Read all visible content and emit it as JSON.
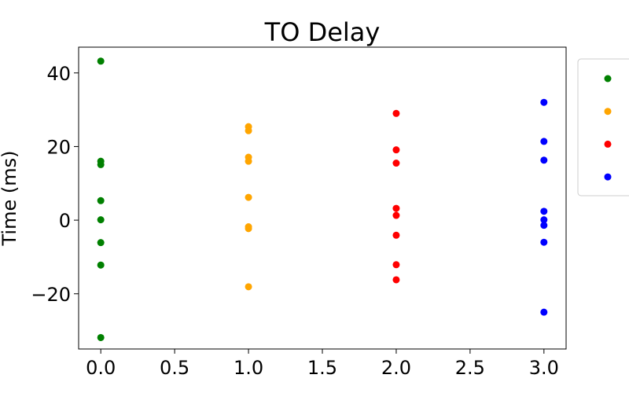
{
  "chart_data": {
    "type": "scatter",
    "title": "TO Delay",
    "xlabel": "",
    "ylabel": "Time (ms)",
    "xlim": [
      -0.15,
      3.15
    ],
    "ylim": [
      -35,
      47
    ],
    "xticks": [
      0.0,
      0.5,
      1.0,
      1.5,
      2.0,
      2.5,
      3.0
    ],
    "xtick_labels": [
      "0.0",
      "0.5",
      "1.0",
      "1.5",
      "2.0",
      "2.5",
      "3.0"
    ],
    "yticks": [
      -20,
      0,
      20,
      40
    ],
    "ytick_labels": [
      "−20",
      "0",
      "20",
      "40"
    ],
    "grid": false,
    "legend": {
      "placement": "right, partially cut off",
      "entries": [
        {
          "color": "#008000",
          "label": ""
        },
        {
          "color": "#ffa500",
          "label": ""
        },
        {
          "color": "#ff0000",
          "label": ""
        },
        {
          "color": "#0000ff",
          "label": ""
        }
      ]
    },
    "series": [
      {
        "color": "#008000",
        "points": [
          {
            "x": 0,
            "y": 43.2
          },
          {
            "x": 0,
            "y": 16.0
          },
          {
            "x": 0,
            "y": 15.1
          },
          {
            "x": 0,
            "y": 5.3
          },
          {
            "x": 0,
            "y": 0.1
          },
          {
            "x": 0,
            "y": -6.1
          },
          {
            "x": 0,
            "y": -12.2
          },
          {
            "x": 0,
            "y": -31.9
          }
        ]
      },
      {
        "color": "#ffa500",
        "points": [
          {
            "x": 1,
            "y": 25.4
          },
          {
            "x": 1,
            "y": 24.3
          },
          {
            "x": 1,
            "y": 17.1
          },
          {
            "x": 1,
            "y": 16.0
          },
          {
            "x": 1,
            "y": 6.2
          },
          {
            "x": 1,
            "y": -1.8
          },
          {
            "x": 1,
            "y": -2.3
          },
          {
            "x": 1,
            "y": -18.1
          }
        ]
      },
      {
        "color": "#ff0000",
        "points": [
          {
            "x": 2,
            "y": 29.0
          },
          {
            "x": 2,
            "y": 19.1
          },
          {
            "x": 2,
            "y": 15.5
          },
          {
            "x": 2,
            "y": 3.2
          },
          {
            "x": 2,
            "y": 1.3
          },
          {
            "x": 2,
            "y": -4.1
          },
          {
            "x": 2,
            "y": -12.1
          },
          {
            "x": 2,
            "y": -16.2
          }
        ]
      },
      {
        "color": "#0000ff",
        "points": [
          {
            "x": 3,
            "y": 32.0
          },
          {
            "x": 3,
            "y": 21.4
          },
          {
            "x": 3,
            "y": 16.3
          },
          {
            "x": 3,
            "y": 2.4
          },
          {
            "x": 3,
            "y": 0.1
          },
          {
            "x": 3,
            "y": -1.4
          },
          {
            "x": 3,
            "y": -6.0
          },
          {
            "x": 3,
            "y": -25.0
          }
        ]
      }
    ]
  }
}
